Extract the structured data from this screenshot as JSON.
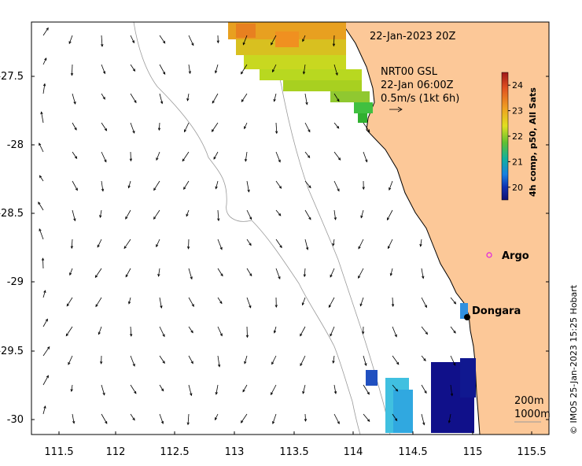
{
  "map": {
    "date_label": "22-Jan-2023 20Z",
    "current_info": [
      "NRT00 GSL",
      "22-Jan 06:00Z",
      "0.5m/s (1kt 6h)"
    ],
    "colorbar": {
      "title": "4h comp, p50, All Sats",
      "ticks": [
        "24",
        "23",
        "22",
        "21",
        "20"
      ],
      "range": [
        19.5,
        24.5
      ]
    },
    "x_ticks": [
      "111.5",
      "112",
      "112.5",
      "113",
      "113.5",
      "114",
      "114.5",
      "115",
      "115.5"
    ],
    "y_ticks": [
      "-27.5",
      "-28",
      "-28.5",
      "-29",
      "-29.5",
      "-30"
    ],
    "places": [
      {
        "name": "Argo",
        "lon": 115.0,
        "lat": -28.83
      },
      {
        "name": "Dongara",
        "lon": 114.93,
        "lat": -29.25
      }
    ],
    "depth_legend": [
      "200m",
      "1000m"
    ],
    "credit": "© IMOS 25-Jan-2023 15:25 Hobart",
    "colors": {
      "land": "#fcc898",
      "argo": "#e020e0",
      "dongara": "#000000"
    }
  }
}
